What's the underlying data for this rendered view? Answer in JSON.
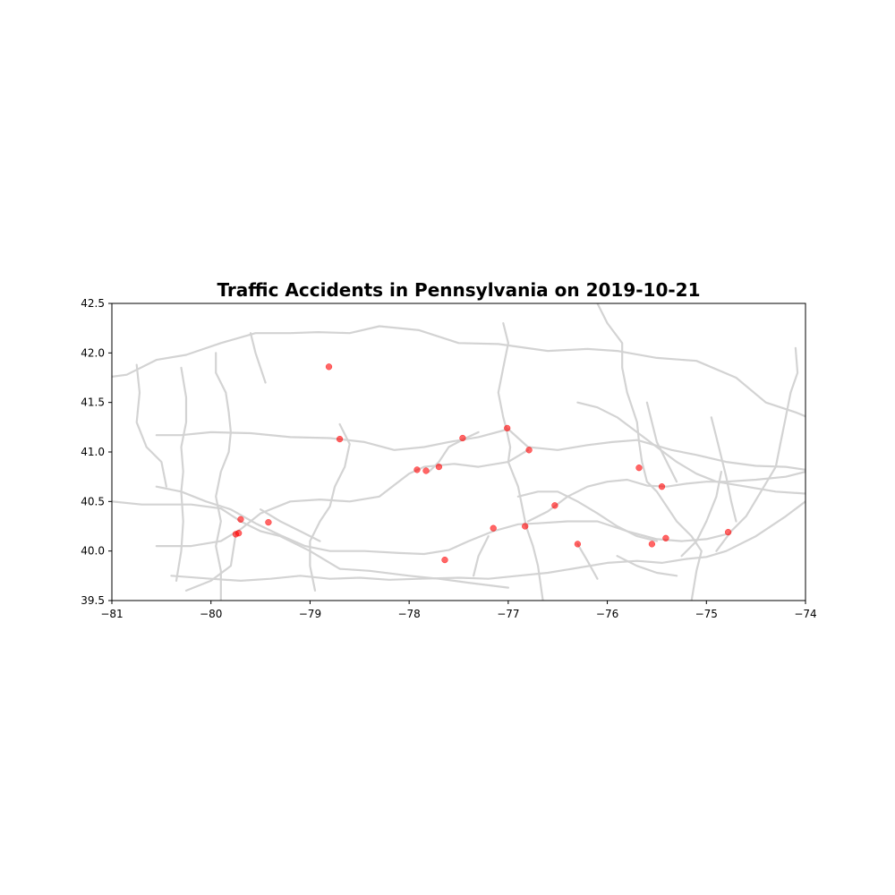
{
  "chart_data": {
    "type": "scatter",
    "title": "Traffic Accidents in Pennsylvania on 2019-10-21",
    "xlabel": "",
    "ylabel": "",
    "xlim": [
      -81,
      -74
    ],
    "ylim": [
      39.5,
      42.5
    ],
    "x_ticks": [
      -81,
      -80,
      -79,
      -78,
      -77,
      -76,
      -75,
      -74
    ],
    "x_tick_labels": [
      "−81",
      "−80",
      "−79",
      "−78",
      "−77",
      "−76",
      "−75",
      "−74"
    ],
    "y_ticks": [
      39.5,
      40.0,
      40.5,
      41.0,
      41.5,
      42.0,
      42.5
    ],
    "y_tick_labels": [
      "39.5",
      "40.0",
      "40.5",
      "41.0",
      "41.5",
      "42.0",
      "42.5"
    ],
    "grid": false,
    "colors": {
      "points": "#ff0000",
      "roads": "#d3d3d3"
    },
    "points": [
      {
        "x": -78.81,
        "y": 41.86
      },
      {
        "x": -78.7,
        "y": 41.13
      },
      {
        "x": -77.46,
        "y": 41.14
      },
      {
        "x": -77.01,
        "y": 41.24
      },
      {
        "x": -76.79,
        "y": 41.02
      },
      {
        "x": -77.92,
        "y": 40.82
      },
      {
        "x": -77.83,
        "y": 40.81
      },
      {
        "x": -77.7,
        "y": 40.85
      },
      {
        "x": -75.68,
        "y": 40.84
      },
      {
        "x": -75.45,
        "y": 40.65
      },
      {
        "x": -76.53,
        "y": 40.46
      },
      {
        "x": -79.7,
        "y": 40.32
      },
      {
        "x": -79.42,
        "y": 40.29
      },
      {
        "x": -79.75,
        "y": 40.17
      },
      {
        "x": -79.72,
        "y": 40.18
      },
      {
        "x": -77.15,
        "y": 40.23
      },
      {
        "x": -76.83,
        "y": 40.25
      },
      {
        "x": -76.3,
        "y": 40.07
      },
      {
        "x": -77.64,
        "y": 39.91
      },
      {
        "x": -75.55,
        "y": 40.07
      },
      {
        "x": -75.41,
        "y": 40.13
      },
      {
        "x": -74.78,
        "y": 40.19
      }
    ],
    "roads": [
      [
        [
          -81,
          41.76
        ],
        [
          -80.85,
          41.78
        ],
        [
          -80.55,
          41.93
        ],
        [
          -80.25,
          41.98
        ],
        [
          -79.9,
          42.1
        ],
        [
          -79.55,
          42.2
        ],
        [
          -79.2,
          42.2
        ],
        [
          -78.92,
          42.21
        ],
        [
          -78.6,
          42.2
        ],
        [
          -78.3,
          42.27
        ],
        [
          -77.9,
          42.23
        ],
        [
          -77.5,
          42.1
        ],
        [
          -77.1,
          42.09
        ],
        [
          -76.6,
          42.02
        ],
        [
          -76.2,
          42.04
        ],
        [
          -75.9,
          42.02
        ],
        [
          -75.5,
          41.95
        ],
        [
          -75.1,
          41.92
        ],
        [
          -74.7,
          41.75
        ],
        [
          -74.4,
          41.5
        ],
        [
          -74.1,
          41.4
        ],
        [
          -74,
          41.36
        ]
      ],
      [
        [
          -80.55,
          41.17
        ],
        [
          -80.3,
          41.17
        ],
        [
          -80.0,
          41.2
        ],
        [
          -79.6,
          41.19
        ],
        [
          -79.2,
          41.15
        ],
        [
          -78.8,
          41.14
        ],
        [
          -78.45,
          41.1
        ],
        [
          -78.15,
          41.02
        ],
        [
          -77.85,
          41.05
        ],
        [
          -77.6,
          41.1
        ],
        [
          -77.3,
          41.15
        ],
        [
          -77.0,
          41.23
        ],
        [
          -76.8,
          41.05
        ],
        [
          -76.5,
          41.02
        ],
        [
          -76.2,
          41.07
        ],
        [
          -75.95,
          41.1
        ],
        [
          -75.7,
          41.12
        ],
        [
          -75.35,
          41.02
        ],
        [
          -75.1,
          40.97
        ],
        [
          -74.8,
          40.9
        ],
        [
          -74.5,
          40.86
        ],
        [
          -74.2,
          40.85
        ],
        [
          -74,
          40.82
        ]
      ],
      [
        [
          -80.55,
          40.65
        ],
        [
          -80.3,
          40.6
        ],
        [
          -80.05,
          40.5
        ],
        [
          -79.8,
          40.42
        ],
        [
          -79.55,
          40.28
        ],
        [
          -79.3,
          40.16
        ],
        [
          -79.05,
          40.05
        ],
        [
          -78.8,
          40.0
        ],
        [
          -78.45,
          40.0
        ],
        [
          -78.1,
          39.98
        ],
        [
          -77.85,
          39.97
        ],
        [
          -77.6,
          40.01
        ],
        [
          -77.4,
          40.1
        ],
        [
          -77.15,
          40.2
        ],
        [
          -76.9,
          40.27
        ],
        [
          -76.7,
          40.28
        ],
        [
          -76.4,
          40.3
        ],
        [
          -76.1,
          40.3
        ],
        [
          -75.8,
          40.2
        ],
        [
          -75.5,
          40.12
        ],
        [
          -75.25,
          40.1
        ],
        [
          -75.0,
          40.12
        ],
        [
          -74.8,
          40.17
        ]
      ],
      [
        [
          -80.55,
          40.05
        ],
        [
          -80.2,
          40.05
        ],
        [
          -79.9,
          40.1
        ],
        [
          -79.7,
          40.22
        ],
        [
          -79.5,
          40.38
        ],
        [
          -79.2,
          40.5
        ],
        [
          -78.9,
          40.52
        ],
        [
          -78.6,
          40.5
        ],
        [
          -78.3,
          40.55
        ],
        [
          -78.0,
          40.78
        ],
        [
          -77.85,
          40.85
        ],
        [
          -77.55,
          40.88
        ],
        [
          -77.3,
          40.85
        ],
        [
          -77.0,
          40.9
        ],
        [
          -76.8,
          41.02
        ]
      ],
      [
        [
          -81,
          40.5
        ],
        [
          -80.7,
          40.47
        ],
        [
          -80.4,
          40.47
        ],
        [
          -80.2,
          40.47
        ],
        [
          -79.9,
          40.43
        ],
        [
          -79.7,
          40.3
        ],
        [
          -79.5,
          40.2
        ],
        [
          -79.3,
          40.15
        ],
        [
          -79.0,
          40.0
        ],
        [
          -78.7,
          39.82
        ],
        [
          -78.4,
          39.8
        ],
        [
          -78.0,
          39.75
        ],
        [
          -77.7,
          39.72
        ],
        [
          -77.4,
          39.68
        ],
        [
          -77.0,
          39.63
        ]
      ],
      [
        [
          -80.4,
          39.75
        ],
        [
          -80.0,
          39.72
        ],
        [
          -79.7,
          39.7
        ],
        [
          -79.4,
          39.72
        ],
        [
          -79.1,
          39.75
        ],
        [
          -78.8,
          39.72
        ],
        [
          -78.5,
          39.73
        ],
        [
          -78.2,
          39.71
        ],
        [
          -77.9,
          39.72
        ],
        [
          -77.5,
          39.73
        ],
        [
          -77.2,
          39.72
        ],
        [
          -76.9,
          39.75
        ],
        [
          -76.6,
          39.78
        ],
        [
          -76.3,
          39.83
        ],
        [
          -76.0,
          39.88
        ],
        [
          -75.7,
          39.9
        ],
        [
          -75.45,
          39.88
        ],
        [
          -75.2,
          39.92
        ],
        [
          -75.0,
          39.94
        ],
        [
          -74.8,
          40.0
        ],
        [
          -74.5,
          40.15
        ],
        [
          -74.2,
          40.35
        ],
        [
          -74,
          40.5
        ]
      ],
      [
        [
          -79.95,
          42.0
        ],
        [
          -79.95,
          41.8
        ],
        [
          -79.85,
          41.6
        ],
        [
          -79.82,
          41.4
        ],
        [
          -79.8,
          41.2
        ],
        [
          -79.82,
          41.0
        ],
        [
          -79.9,
          40.8
        ],
        [
          -79.95,
          40.55
        ],
        [
          -79.9,
          40.3
        ],
        [
          -79.95,
          40.05
        ],
        [
          -79.9,
          39.8
        ],
        [
          -79.9,
          39.5
        ]
      ],
      [
        [
          -80.3,
          41.85
        ],
        [
          -80.25,
          41.55
        ],
        [
          -80.25,
          41.3
        ],
        [
          -80.3,
          41.05
        ],
        [
          -80.28,
          40.8
        ],
        [
          -80.3,
          40.6
        ],
        [
          -80.28,
          40.3
        ],
        [
          -80.3,
          40.0
        ],
        [
          -80.35,
          39.7
        ]
      ],
      [
        [
          -80.75,
          41.88
        ],
        [
          -80.72,
          41.6
        ],
        [
          -80.75,
          41.3
        ],
        [
          -80.65,
          41.05
        ],
        [
          -80.5,
          40.9
        ],
        [
          -80.45,
          40.65
        ]
      ],
      [
        [
          -79.6,
          42.2
        ],
        [
          -79.55,
          42.0
        ],
        [
          -79.45,
          41.7
        ]
      ],
      [
        [
          -78.7,
          41.28
        ],
        [
          -78.6,
          41.08
        ],
        [
          -78.65,
          40.85
        ],
        [
          -78.75,
          40.65
        ],
        [
          -78.8,
          40.45
        ],
        [
          -78.9,
          40.3
        ],
        [
          -79.0,
          40.1
        ],
        [
          -79.0,
          39.85
        ],
        [
          -78.95,
          39.6
        ]
      ],
      [
        [
          -77.05,
          42.3
        ],
        [
          -77.0,
          42.1
        ],
        [
          -77.05,
          41.85
        ],
        [
          -77.1,
          41.6
        ],
        [
          -77.05,
          41.35
        ],
        [
          -77.02,
          41.24
        ],
        [
          -76.98,
          41.05
        ],
        [
          -77.0,
          40.9
        ],
        [
          -76.9,
          40.65
        ],
        [
          -76.85,
          40.4
        ],
        [
          -76.82,
          40.25
        ],
        [
          -76.75,
          40.05
        ],
        [
          -76.7,
          39.85
        ],
        [
          -76.65,
          39.5
        ]
      ],
      [
        [
          -76.1,
          42.5
        ],
        [
          -76.0,
          42.3
        ],
        [
          -75.85,
          42.1
        ],
        [
          -75.85,
          41.85
        ],
        [
          -75.8,
          41.6
        ],
        [
          -75.75,
          41.45
        ],
        [
          -75.7,
          41.3
        ],
        [
          -75.68,
          41.1
        ],
        [
          -75.65,
          40.9
        ],
        [
          -75.6,
          40.7
        ],
        [
          -75.5,
          40.6
        ],
        [
          -75.4,
          40.45
        ],
        [
          -75.3,
          40.3
        ],
        [
          -75.15,
          40.15
        ],
        [
          -75.05,
          40.0
        ],
        [
          -75.1,
          39.8
        ],
        [
          -75.15,
          39.5
        ]
      ],
      [
        [
          -74.1,
          42.05
        ],
        [
          -74.08,
          41.8
        ],
        [
          -74.15,
          41.6
        ],
        [
          -74.2,
          41.35
        ],
        [
          -74.25,
          41.1
        ],
        [
          -74.3,
          40.85
        ],
        [
          -74.45,
          40.6
        ],
        [
          -74.6,
          40.35
        ],
        [
          -74.75,
          40.2
        ],
        [
          -74.9,
          40.0
        ]
      ],
      [
        [
          -76.3,
          41.5
        ],
        [
          -76.1,
          41.45
        ],
        [
          -75.9,
          41.35
        ],
        [
          -75.7,
          41.2
        ],
        [
          -75.5,
          41.05
        ],
        [
          -75.3,
          40.9
        ],
        [
          -75.1,
          40.78
        ],
        [
          -74.9,
          40.7
        ],
        [
          -74.6,
          40.65
        ],
        [
          -74.3,
          40.6
        ],
        [
          -74,
          40.58
        ]
      ],
      [
        [
          -75.6,
          41.5
        ],
        [
          -75.55,
          41.3
        ],
        [
          -75.5,
          41.1
        ],
        [
          -75.4,
          40.9
        ],
        [
          -75.3,
          40.7
        ]
      ],
      [
        [
          -74.95,
          41.35
        ],
        [
          -74.9,
          41.15
        ],
        [
          -74.85,
          40.95
        ],
        [
          -74.8,
          40.75
        ],
        [
          -74.75,
          40.5
        ],
        [
          -74.7,
          40.3
        ]
      ],
      [
        [
          -76.8,
          40.3
        ],
        [
          -76.6,
          40.4
        ],
        [
          -76.4,
          40.55
        ],
        [
          -76.2,
          40.65
        ],
        [
          -76.0,
          40.7
        ],
        [
          -75.8,
          40.72
        ],
        [
          -75.6,
          40.66
        ],
        [
          -75.4,
          40.65
        ],
        [
          -75.2,
          40.68
        ],
        [
          -75.0,
          40.7
        ],
        [
          -74.8,
          40.7
        ],
        [
          -74.5,
          40.72
        ],
        [
          -74.2,
          40.75
        ],
        [
          -74,
          40.8
        ]
      ],
      [
        [
          -77.8,
          40.8
        ],
        [
          -77.7,
          40.9
        ],
        [
          -77.6,
          41.05
        ],
        [
          -77.45,
          41.13
        ],
        [
          -77.3,
          41.2
        ]
      ],
      [
        [
          -76.9,
          40.55
        ],
        [
          -76.7,
          40.6
        ],
        [
          -76.5,
          40.6
        ],
        [
          -76.3,
          40.5
        ],
        [
          -76.1,
          40.38
        ],
        [
          -75.9,
          40.25
        ],
        [
          -75.7,
          40.15
        ],
        [
          -75.5,
          40.1
        ]
      ],
      [
        [
          -78.9,
          40.1
        ],
        [
          -79.1,
          40.2
        ],
        [
          -79.3,
          40.3
        ],
        [
          -79.5,
          40.42
        ]
      ],
      [
        [
          -80.25,
          39.6
        ],
        [
          -80.0,
          39.7
        ],
        [
          -79.8,
          39.85
        ],
        [
          -79.75,
          40.17
        ]
      ],
      [
        [
          -77.2,
          40.15
        ],
        [
          -77.3,
          39.95
        ],
        [
          -77.35,
          39.75
        ]
      ],
      [
        [
          -76.3,
          40.07
        ],
        [
          -76.2,
          39.9
        ],
        [
          -76.1,
          39.72
        ]
      ],
      [
        [
          -75.9,
          39.95
        ],
        [
          -75.7,
          39.85
        ],
        [
          -75.5,
          39.78
        ],
        [
          -75.3,
          39.75
        ]
      ],
      [
        [
          -75.25,
          39.95
        ],
        [
          -75.1,
          40.1
        ],
        [
          -75.0,
          40.3
        ],
        [
          -74.9,
          40.55
        ],
        [
          -74.85,
          40.8
        ]
      ]
    ]
  }
}
